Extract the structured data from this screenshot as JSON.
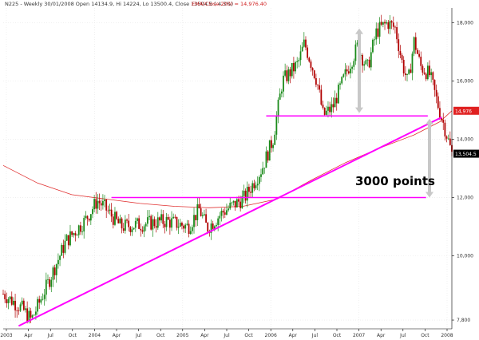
{
  "header": {
    "series_text": "N225 - Weekly 30/01/2008 Open 14134.9, Hi 14224, Lo 13500.4, Close 13504.5 (-4.3%)",
    "ema_text": "EMA(Close,200) = 14,976.40"
  },
  "chart_data": {
    "type": "candlestick",
    "title": "N225 - Weekly 30/01/2008",
    "ohlc_last": {
      "open": 14134.9,
      "high": 14224,
      "low": 13500.4,
      "close": 13504.5,
      "change": "-4.3%"
    },
    "ema": {
      "label": "EMA(Close,200)",
      "last": 14976.4
    },
    "y_ticks": [
      {
        "value": 7800,
        "label": "7,800"
      },
      {
        "value": 10000,
        "label": "10,000"
      },
      {
        "value": 12000,
        "label": "12,000"
      },
      {
        "value": 14000,
        "label": "14,000"
      },
      {
        "value": 16000,
        "label": "16,000"
      },
      {
        "value": 18000,
        "label": "18,000"
      }
    ],
    "last_price_tag": "13,504.5",
    "ema_tag": "14,976",
    "x_ticks": [
      "2003",
      "Apr",
      "Jul",
      "Oct",
      "2004",
      "Apr",
      "Jul",
      "Oct",
      "2005",
      "Apr",
      "Jul",
      "Oct",
      "2006",
      "Apr",
      "Jul",
      "Oct",
      "2007",
      "Apr",
      "Jul",
      "Oct",
      "2008"
    ],
    "ylim": [
      7500,
      18500
    ],
    "annotation": "3000 points",
    "support_levels": [
      12000,
      14800
    ],
    "colors": {
      "up": "#1a8a1a",
      "down": "#b00000",
      "ema": "#e03030",
      "lines": "#ff00ff",
      "arrow": "#c8c8c8"
    }
  }
}
